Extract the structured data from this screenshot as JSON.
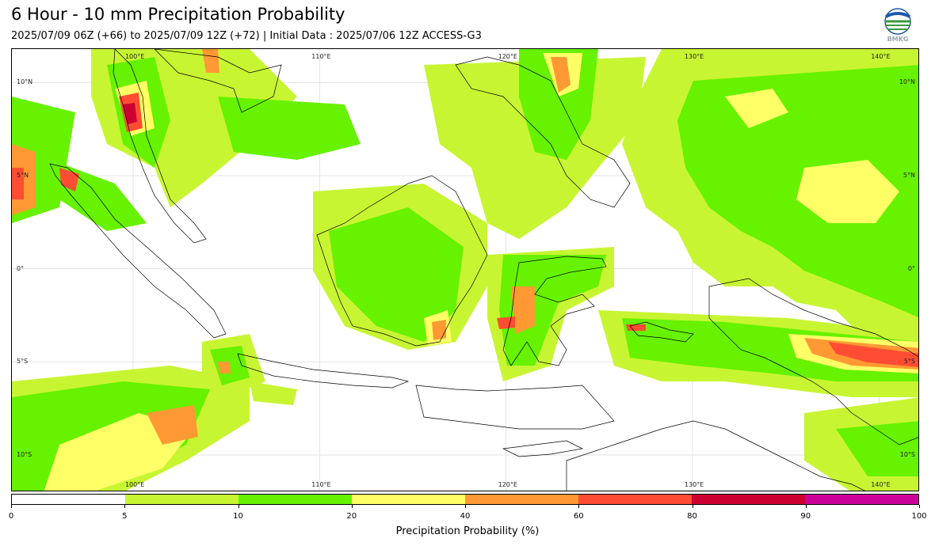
{
  "header": {
    "title": "6 Hour - 10 mm Precipitation Probability",
    "subtitle": "2025/07/09 06Z (+66) to 2025/07/09 12Z (+72) | Initial Data : 2025/07/06 12Z ACCESS-G3"
  },
  "logo": {
    "icon": "bmkg-logo-icon",
    "text": "BMKG"
  },
  "map": {
    "lon_labels": [
      "100°E",
      "110°E",
      "120°E",
      "130°E",
      "140°E"
    ],
    "lat_labels": [
      "10°N",
      "5°N",
      "0°",
      "5°S",
      "10°S"
    ],
    "lon_range": [
      93.5,
      142.2
    ],
    "lat_range": [
      -12,
      11.8
    ]
  },
  "colorbar": {
    "ticks": [
      "0",
      "5",
      "10",
      "20",
      "40",
      "60",
      "80",
      "90",
      "100"
    ],
    "colors": [
      "#ffffff",
      "#c8f532",
      "#66f200",
      "#ffff66",
      "#ff9933",
      "#ff4d33",
      "#cc0033",
      "#cc0099"
    ],
    "label": "Precipitation Probability (%)"
  }
}
